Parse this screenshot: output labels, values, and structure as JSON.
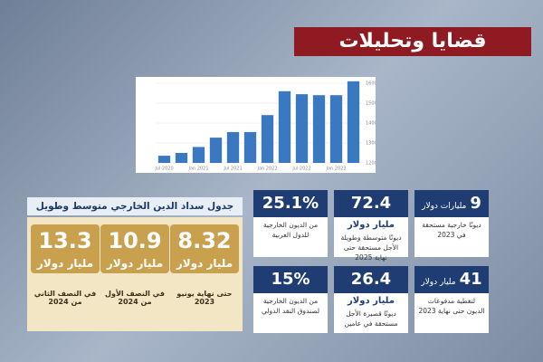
{
  "banner": "قضايا وتحليلات",
  "chart_data": {
    "type": "bar",
    "categories": [
      "Jul 2020",
      null,
      "Jan 2021",
      null,
      "Jul 2021",
      null,
      "Jan 2022",
      null,
      "Jul 2022",
      null,
      "Jan 2023",
      null
    ],
    "values": [
      123600,
      125000,
      128000,
      132700,
      135500,
      135500,
      144000,
      156000,
      154500,
      154000,
      154000,
      161000
    ],
    "color": "#3a78c2",
    "ylim": [
      120000,
      160000
    ],
    "yticks": [
      120000,
      130000,
      140000,
      150000,
      160000
    ],
    "grid": true
  },
  "schedule": {
    "title": "جدول سداد الدين الخارجي متوسط وطويل الأجل:",
    "items": [
      {
        "value": "8.32",
        "unit": "مليار دولار",
        "label": "حتى نهاية يونيو 2023"
      },
      {
        "value": "10.9",
        "unit": "مليار دولار",
        "label": "في النصف الأول من 2024"
      },
      {
        "value": "13.3",
        "unit": "مليار دولار",
        "label": "في النصف الثاني من 2024"
      }
    ]
  },
  "cards": [
    {
      "value": "9",
      "unit": "مليارات دولار",
      "label": "ديونًا خارجية مستحقة في 2023"
    },
    {
      "value": "72.4",
      "unit": "مليار دولار",
      "label": "ديونًا متوسطة وطويلة الأجل مستحقة حتى نهاية 2025"
    },
    {
      "value": "25.1%",
      "label": "من الديون الخارجية للدول العربية"
    },
    {
      "value": "41",
      "unit": "مليار دولار",
      "label": "لتغطية مدفوعات الديون حتى نهاية 2023"
    },
    {
      "value": "26.4",
      "unit": "مليار دولار",
      "label": "ديونًا قصيرة الأجل مستحقة في عامين"
    },
    {
      "value": "15%",
      "label": "من الديون الخارجية لصندوق النقد الدولي"
    }
  ]
}
